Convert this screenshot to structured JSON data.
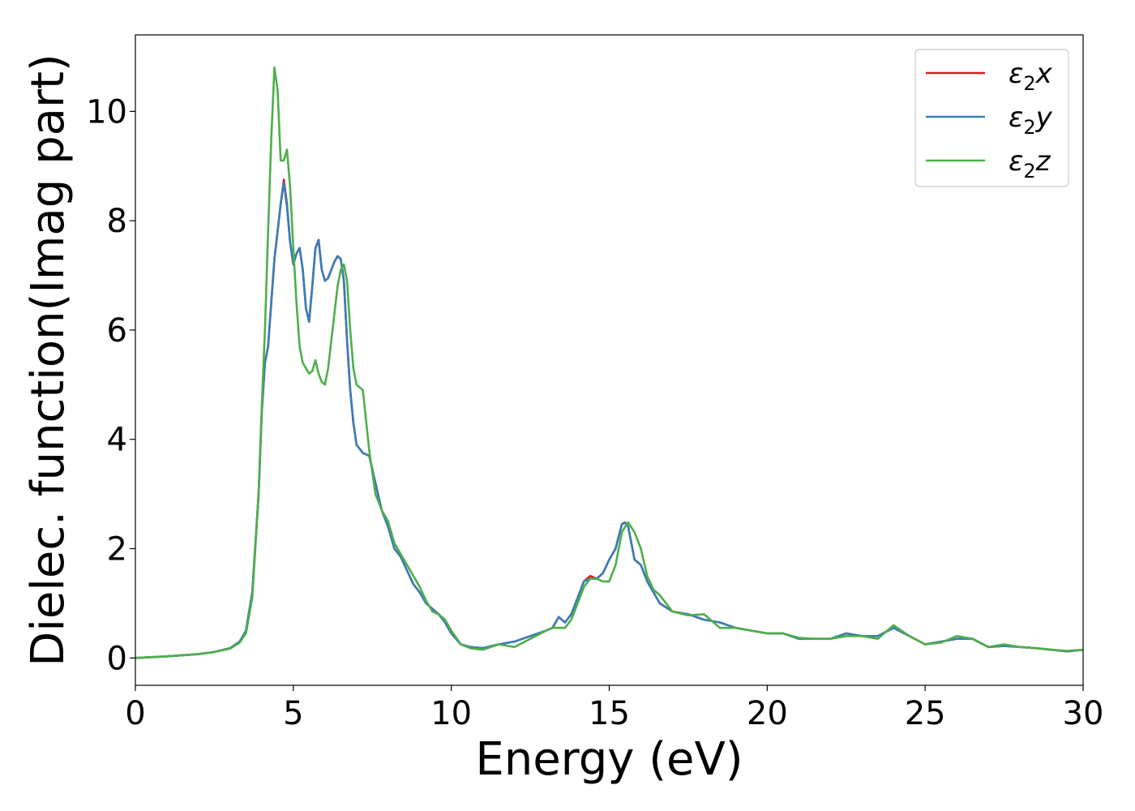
{
  "chart_data": {
    "type": "line",
    "title": "",
    "xlabel": "Energy (eV)",
    "ylabel": "Dielec. function(Imag part)",
    "xlim": [
      0,
      30
    ],
    "ylim": [
      -0.5,
      11.4
    ],
    "xticks": [
      0,
      5,
      10,
      15,
      20,
      25,
      30
    ],
    "yticks": [
      0,
      2,
      4,
      6,
      8,
      10
    ],
    "xtick_labels": [
      "0",
      "5",
      "10",
      "15",
      "20",
      "25",
      "30"
    ],
    "ytick_labels": [
      "0",
      "2",
      "4",
      "6",
      "8",
      "10"
    ],
    "grid": false,
    "legend_position": "top-right",
    "series": [
      {
        "name": "ε₂x",
        "label_base": "ε",
        "label_sub": "2",
        "label_tail": "x",
        "color": "#e41a1c",
        "x": [
          0,
          1,
          2,
          2.5,
          3,
          3.3,
          3.5,
          3.7,
          3.9,
          4.0,
          4.1,
          4.2,
          4.3,
          4.4,
          4.5,
          4.6,
          4.7,
          4.8,
          4.9,
          5.0,
          5.1,
          5.2,
          5.3,
          5.4,
          5.5,
          5.6,
          5.7,
          5.8,
          5.9,
          6.0,
          6.1,
          6.2,
          6.3,
          6.4,
          6.5,
          6.6,
          6.7,
          6.8,
          6.9,
          7.0,
          7.2,
          7.4,
          7.6,
          7.8,
          8.0,
          8.2,
          8.4,
          8.6,
          8.8,
          9.0,
          9.2,
          9.4,
          9.6,
          9.8,
          10.0,
          10.3,
          10.6,
          11,
          11.5,
          12,
          12.5,
          13,
          13.2,
          13.4,
          13.6,
          13.8,
          14,
          14.2,
          14.4,
          14.6,
          14.8,
          15,
          15.2,
          15.4,
          15.5,
          15.6,
          15.8,
          16,
          16.2,
          16.4,
          16.6,
          17,
          17.5,
          18,
          18.5,
          19,
          19.5,
          20,
          20.5,
          21,
          21.5,
          22,
          22.5,
          23,
          23.5,
          24,
          24.5,
          25,
          25.5,
          26,
          26.5,
          27,
          27.5,
          28,
          28.5,
          29,
          29.5,
          30
        ],
        "y": [
          0,
          0.03,
          0.07,
          0.11,
          0.18,
          0.3,
          0.5,
          1.2,
          3.0,
          4.5,
          5.4,
          5.7,
          6.5,
          7.3,
          7.8,
          8.3,
          8.75,
          8.3,
          7.6,
          7.2,
          7.4,
          7.5,
          7.1,
          6.4,
          6.15,
          6.8,
          7.5,
          7.65,
          7.1,
          6.9,
          6.95,
          7.1,
          7.25,
          7.35,
          7.3,
          6.9,
          5.8,
          4.9,
          4.3,
          3.9,
          3.75,
          3.7,
          3.2,
          2.7,
          2.4,
          2.0,
          1.85,
          1.6,
          1.35,
          1.2,
          1.0,
          0.9,
          0.8,
          0.65,
          0.45,
          0.25,
          0.2,
          0.18,
          0.25,
          0.3,
          0.4,
          0.5,
          0.55,
          0.75,
          0.65,
          0.8,
          1.1,
          1.4,
          1.5,
          1.45,
          1.55,
          1.8,
          2.0,
          2.45,
          2.48,
          2.4,
          1.8,
          1.7,
          1.4,
          1.2,
          1.0,
          0.85,
          0.8,
          0.7,
          0.65,
          0.55,
          0.5,
          0.45,
          0.45,
          0.35,
          0.35,
          0.35,
          0.45,
          0.4,
          0.4,
          0.55,
          0.4,
          0.25,
          0.3,
          0.35,
          0.35,
          0.2,
          0.22,
          0.2,
          0.18,
          0.15,
          0.12,
          0.15
        ]
      },
      {
        "name": "ε₂y",
        "label_base": "ε",
        "label_sub": "2",
        "label_tail": "y",
        "color": "#377eb8",
        "x": [
          0,
          1,
          2,
          2.5,
          3,
          3.3,
          3.5,
          3.7,
          3.9,
          4.0,
          4.1,
          4.2,
          4.3,
          4.4,
          4.5,
          4.6,
          4.7,
          4.8,
          4.9,
          5.0,
          5.1,
          5.2,
          5.3,
          5.4,
          5.5,
          5.6,
          5.7,
          5.8,
          5.9,
          6.0,
          6.1,
          6.2,
          6.3,
          6.4,
          6.5,
          6.6,
          6.7,
          6.8,
          6.9,
          7.0,
          7.2,
          7.4,
          7.6,
          7.8,
          8.0,
          8.2,
          8.4,
          8.6,
          8.8,
          9.0,
          9.2,
          9.4,
          9.6,
          9.8,
          10.0,
          10.3,
          10.6,
          11,
          11.5,
          12,
          12.5,
          13,
          13.2,
          13.4,
          13.6,
          13.8,
          14,
          14.2,
          14.4,
          14.6,
          14.8,
          15,
          15.2,
          15.4,
          15.5,
          15.6,
          15.8,
          16,
          16.2,
          16.4,
          16.6,
          17,
          17.5,
          18,
          18.5,
          19,
          19.5,
          20,
          20.5,
          21,
          21.5,
          22,
          22.5,
          23,
          23.5,
          24,
          24.5,
          25,
          25.5,
          26,
          26.5,
          27,
          27.5,
          28,
          28.5,
          29,
          29.5,
          30
        ],
        "y": [
          0,
          0.03,
          0.07,
          0.11,
          0.18,
          0.3,
          0.5,
          1.2,
          3.0,
          4.5,
          5.4,
          5.7,
          6.5,
          7.3,
          7.8,
          8.3,
          8.7,
          8.25,
          7.6,
          7.2,
          7.4,
          7.5,
          7.1,
          6.4,
          6.15,
          6.8,
          7.5,
          7.65,
          7.1,
          6.9,
          6.95,
          7.1,
          7.25,
          7.35,
          7.3,
          6.9,
          5.8,
          4.9,
          4.3,
          3.9,
          3.75,
          3.7,
          3.2,
          2.7,
          2.4,
          2.0,
          1.85,
          1.6,
          1.35,
          1.2,
          1.0,
          0.9,
          0.8,
          0.65,
          0.45,
          0.25,
          0.2,
          0.18,
          0.25,
          0.3,
          0.4,
          0.5,
          0.55,
          0.75,
          0.65,
          0.8,
          1.1,
          1.4,
          1.45,
          1.45,
          1.55,
          1.8,
          2.0,
          2.45,
          2.47,
          2.4,
          1.8,
          1.7,
          1.4,
          1.2,
          1.0,
          0.85,
          0.8,
          0.7,
          0.65,
          0.55,
          0.5,
          0.45,
          0.45,
          0.35,
          0.35,
          0.35,
          0.45,
          0.4,
          0.4,
          0.55,
          0.4,
          0.25,
          0.3,
          0.35,
          0.35,
          0.2,
          0.22,
          0.2,
          0.18,
          0.15,
          0.12,
          0.15
        ]
      },
      {
        "name": "ε₂z",
        "label_base": "ε",
        "label_sub": "2",
        "label_tail": "z",
        "color": "#4daf4a",
        "x": [
          0,
          1,
          2,
          2.5,
          3,
          3.3,
          3.5,
          3.7,
          3.9,
          4.0,
          4.1,
          4.2,
          4.3,
          4.4,
          4.5,
          4.6,
          4.7,
          4.8,
          4.9,
          5.0,
          5.1,
          5.2,
          5.3,
          5.4,
          5.5,
          5.6,
          5.7,
          5.8,
          5.9,
          6.0,
          6.1,
          6.2,
          6.3,
          6.4,
          6.5,
          6.6,
          6.7,
          6.8,
          6.9,
          7.0,
          7.2,
          7.4,
          7.6,
          7.8,
          8.0,
          8.2,
          8.4,
          8.6,
          8.8,
          9.0,
          9.2,
          9.4,
          9.6,
          9.8,
          10.0,
          10.3,
          10.6,
          11,
          11.5,
          12,
          12.5,
          13,
          13.2,
          13.4,
          13.6,
          13.8,
          14,
          14.2,
          14.4,
          14.6,
          14.8,
          15,
          15.2,
          15.4,
          15.5,
          15.6,
          15.8,
          16,
          16.2,
          16.4,
          16.6,
          17,
          17.5,
          18,
          18.5,
          19,
          19.5,
          20,
          20.5,
          21,
          21.5,
          22,
          22.5,
          23,
          23.5,
          24,
          24.5,
          25,
          25.5,
          26,
          26.5,
          27,
          27.5,
          28,
          28.5,
          29,
          29.5,
          30
        ],
        "y": [
          0,
          0.03,
          0.07,
          0.11,
          0.17,
          0.28,
          0.45,
          1.1,
          3.0,
          4.6,
          6.0,
          7.8,
          9.5,
          10.8,
          10.4,
          9.1,
          9.1,
          9.3,
          8.6,
          7.5,
          6.5,
          5.7,
          5.4,
          5.3,
          5.2,
          5.25,
          5.45,
          5.2,
          5.05,
          5.0,
          5.3,
          5.8,
          6.3,
          6.8,
          7.1,
          7.2,
          6.9,
          6.0,
          5.3,
          5.0,
          4.9,
          3.8,
          3.0,
          2.7,
          2.5,
          2.1,
          1.9,
          1.7,
          1.5,
          1.3,
          1.05,
          0.85,
          0.8,
          0.7,
          0.5,
          0.25,
          0.18,
          0.15,
          0.25,
          0.2,
          0.35,
          0.5,
          0.55,
          0.55,
          0.55,
          0.7,
          1.0,
          1.3,
          1.45,
          1.45,
          1.4,
          1.4,
          1.7,
          2.3,
          2.4,
          2.48,
          2.3,
          2.0,
          1.5,
          1.25,
          1.15,
          0.85,
          0.78,
          0.8,
          0.55,
          0.55,
          0.5,
          0.45,
          0.45,
          0.37,
          0.35,
          0.35,
          0.4,
          0.4,
          0.35,
          0.6,
          0.4,
          0.25,
          0.28,
          0.4,
          0.35,
          0.2,
          0.25,
          0.2,
          0.18,
          0.15,
          0.13,
          0.15
        ]
      }
    ]
  }
}
